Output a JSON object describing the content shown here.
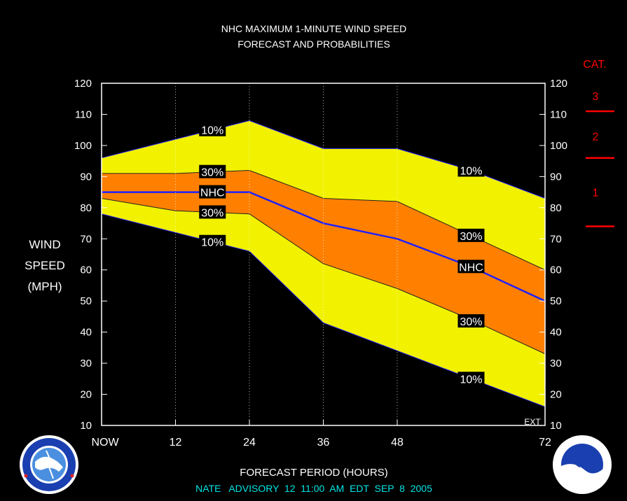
{
  "colors": {
    "background": "#000000",
    "outer_band": "#f2f200",
    "inner_band": "#ff8000",
    "nhc_line": "#2020ff",
    "category": "#ff0000",
    "footer": "#00e5e5"
  },
  "chart_data": {
    "type": "area",
    "title": "NHC MAXIMUM 1-MINUTE WIND SPEED",
    "subtitle": "FORECAST AND PROBABILITIES",
    "xlabel": "FORECAST PERIOD (HOURS)",
    "ylabel": [
      "WIND",
      "SPEED",
      "(MPH)"
    ],
    "xlim": [
      0,
      72
    ],
    "ylim": [
      10,
      120
    ],
    "x_ticks": [
      {
        "x": 0,
        "label": "NOW"
      },
      {
        "x": 12,
        "label": "12"
      },
      {
        "x": 24,
        "label": "24"
      },
      {
        "x": 36,
        "label": "36"
      },
      {
        "x": 48,
        "label": "48"
      },
      {
        "x": 72,
        "label": "72"
      }
    ],
    "y_ticks": [
      10,
      20,
      30,
      40,
      50,
      60,
      70,
      80,
      90,
      100,
      110,
      120
    ],
    "grid": "vertical dotted at 12, 24, 36, 48",
    "ext_label": "EXT",
    "x": [
      0,
      12,
      24,
      36,
      48,
      60,
      72
    ],
    "series": [
      {
        "name": "10%",
        "band": "upper",
        "values": [
          96,
          102,
          108,
          99,
          99,
          92,
          83
        ]
      },
      {
        "name": "30%",
        "band": "upper",
        "values": [
          91,
          91,
          92,
          83,
          82,
          71,
          60
        ]
      },
      {
        "name": "NHC",
        "values": [
          85,
          85,
          85,
          75,
          70,
          61,
          50
        ]
      },
      {
        "name": "30%",
        "band": "lower",
        "values": [
          83,
          79,
          78,
          62,
          54,
          44,
          33
        ]
      },
      {
        "name": "10%",
        "band": "lower",
        "values": [
          78,
          72,
          66,
          43,
          34,
          25,
          16
        ]
      }
    ],
    "series_labels": [
      {
        "text": "10%",
        "x": 18,
        "y": 105
      },
      {
        "text": "30%",
        "x": 18,
        "y": 91.5
      },
      {
        "text": "NHC",
        "x": 18,
        "y": 85
      },
      {
        "text": "30%",
        "x": 18,
        "y": 78.5
      },
      {
        "text": "10%",
        "x": 18,
        "y": 69
      },
      {
        "text": "10%",
        "x": 60,
        "y": 92
      },
      {
        "text": "30%",
        "x": 60,
        "y": 71
      },
      {
        "text": "NHC",
        "x": 60,
        "y": 61
      },
      {
        "text": "30%",
        "x": 60,
        "y": 43.5
      },
      {
        "text": "10%",
        "x": 60,
        "y": 25
      }
    ],
    "category_scale": {
      "title": "CAT.",
      "thresholds": [
        111,
        96,
        74
      ],
      "labels": [
        {
          "text": "3",
          "y": 116
        },
        {
          "text": "2",
          "y": 103
        },
        {
          "text": "1",
          "y": 85
        }
      ]
    },
    "advisory": "NATE   ADVISORY  12  11:00  AM  EDT  SEP  8  2005"
  }
}
